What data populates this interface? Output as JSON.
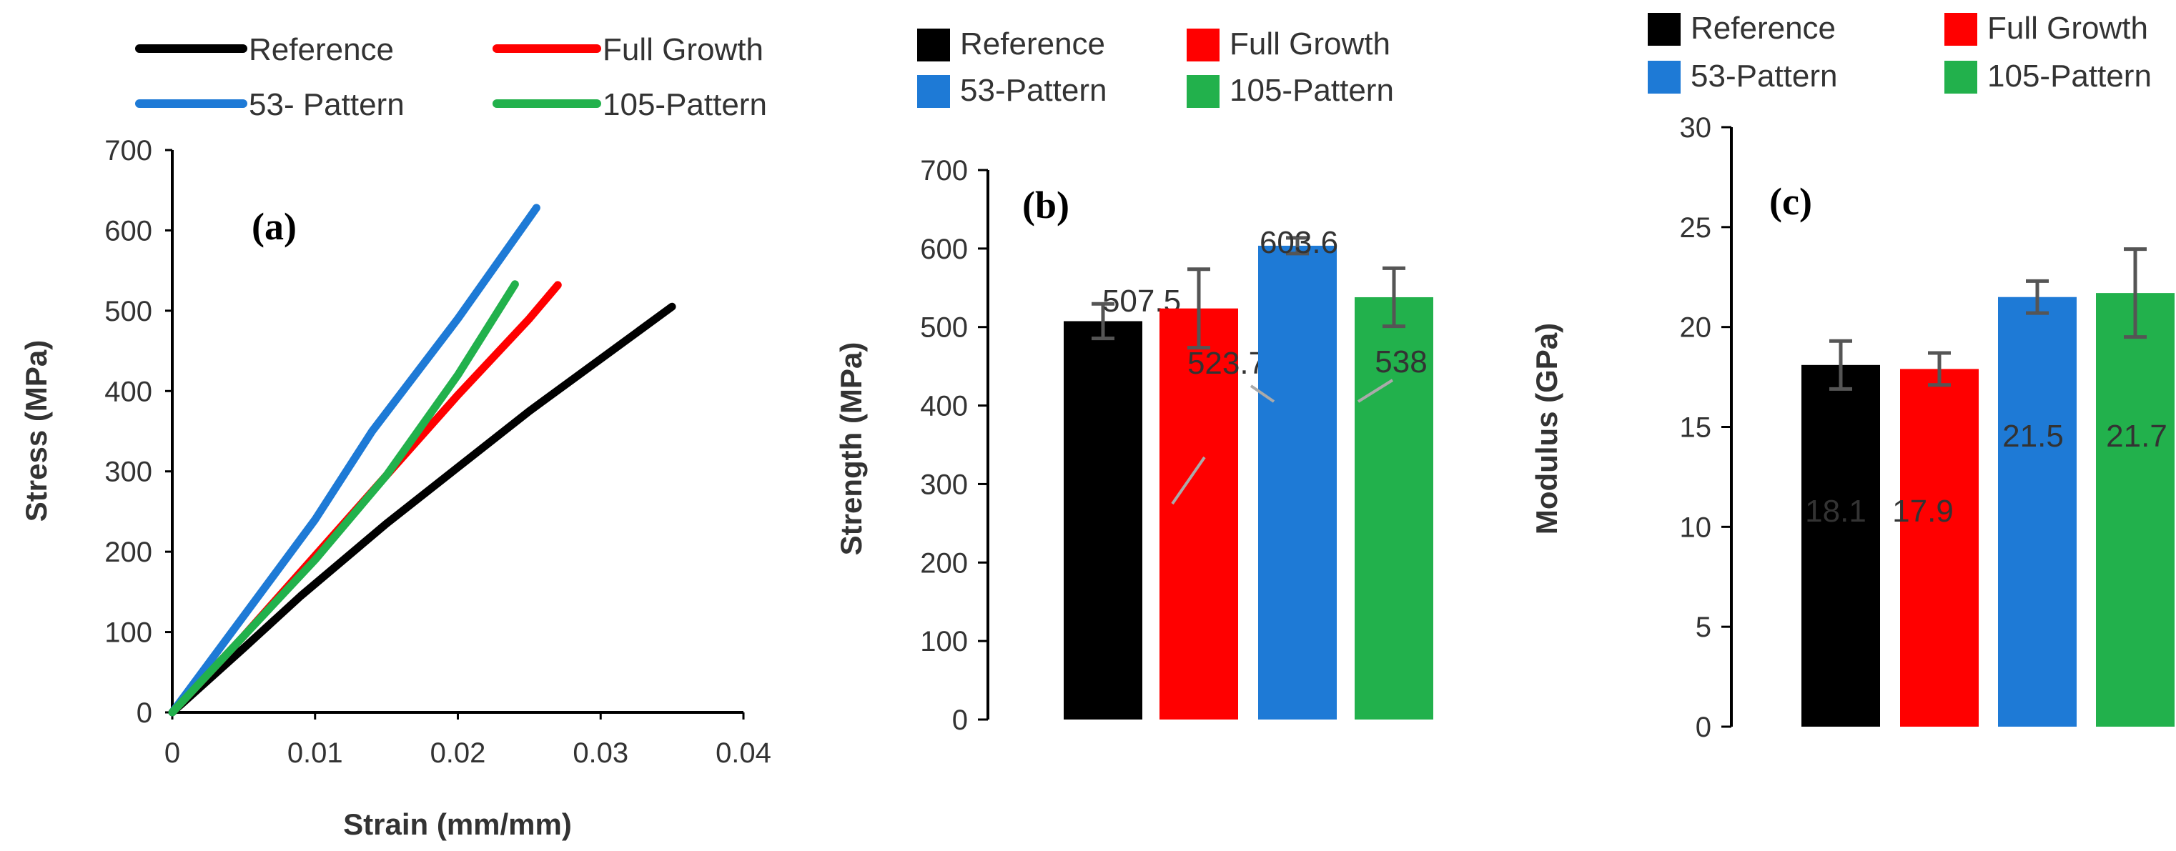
{
  "chart_data": [
    {
      "id": "a",
      "type": "line",
      "panel_label": "(a)",
      "xlabel": "Strain (mm/mm)",
      "ylabel": "Stress (MPa)",
      "xlim": [
        0,
        0.04
      ],
      "ylim": [
        0,
        700
      ],
      "xticks": [
        "0",
        "0.01",
        "0.02",
        "0.03",
        "0.04"
      ],
      "yticks": [
        "0",
        "100",
        "200",
        "300",
        "400",
        "500",
        "600",
        "700"
      ],
      "legend": [
        "Reference",
        "Full Growth",
        "53- Pattern",
        "105-Pattern"
      ],
      "series": [
        {
          "name": "Reference",
          "color": "#000000",
          "points": [
            [
              0,
              0
            ],
            [
              0.005,
              80
            ],
            [
              0.009,
              145
            ],
            [
              0.015,
              235
            ],
            [
              0.02,
              305
            ],
            [
              0.025,
              375
            ],
            [
              0.03,
              440
            ],
            [
              0.035,
              505
            ]
          ]
        },
        {
          "name": "Full Growth",
          "color": "#ff0000",
          "points": [
            [
              0,
              0
            ],
            [
              0.005,
              95
            ],
            [
              0.01,
              195
            ],
            [
              0.015,
              295
            ],
            [
              0.02,
              395
            ],
            [
              0.025,
              490
            ],
            [
              0.027,
              532
            ]
          ]
        },
        {
          "name": "53- Pattern",
          "color": "#1e7ad6",
          "points": [
            [
              0,
              0
            ],
            [
              0.005,
              120
            ],
            [
              0.01,
              240
            ],
            [
              0.014,
              350
            ],
            [
              0.02,
              490
            ],
            [
              0.0255,
              628
            ]
          ]
        },
        {
          "name": "105-Pattern",
          "color": "#22b14c",
          "points": [
            [
              0,
              0
            ],
            [
              0.005,
              95
            ],
            [
              0.01,
              190
            ],
            [
              0.015,
              295
            ],
            [
              0.02,
              420
            ],
            [
              0.024,
              533
            ]
          ]
        }
      ]
    },
    {
      "id": "b",
      "type": "bar",
      "panel_label": "(b)",
      "ylabel": "Strength (MPa)",
      "ylim": [
        0,
        700
      ],
      "yticks": [
        "0",
        "100",
        "200",
        "300",
        "400",
        "500",
        "600",
        "700"
      ],
      "legend": [
        "Reference",
        "Full Growth",
        "53-Pattern",
        "105-Pattern"
      ],
      "categories": [
        "Reference",
        "Full Growth",
        "53-Pattern",
        "105-Pattern"
      ],
      "values": [
        507.5,
        523.7,
        603.6,
        538
      ],
      "errors": [
        22,
        50,
        10,
        37
      ],
      "labels": [
        "507.5",
        "523.7",
        "603.6",
        "538"
      ],
      "colors": [
        "#000000",
        "#ff0000",
        "#1e7ad6",
        "#22b14c"
      ]
    },
    {
      "id": "c",
      "type": "bar",
      "panel_label": "(c)",
      "ylabel": "Modulus (GPa)",
      "ylim": [
        0,
        30
      ],
      "yticks": [
        "0",
        "5",
        "10",
        "15",
        "20",
        "25",
        "30"
      ],
      "legend": [
        "Reference",
        "Full Growth",
        "53-Pattern",
        "105-Pattern"
      ],
      "categories": [
        "Reference",
        "Full Growth",
        "53-Pattern",
        "105-Pattern"
      ],
      "values": [
        18.1,
        17.9,
        21.5,
        21.7
      ],
      "errors": [
        1.2,
        0.8,
        0.8,
        2.2
      ],
      "labels": [
        "18.1",
        "17.9",
        "21.5",
        "21.7"
      ],
      "colors": [
        "#000000",
        "#ff0000",
        "#1e7ad6",
        "#22b14c"
      ]
    }
  ]
}
